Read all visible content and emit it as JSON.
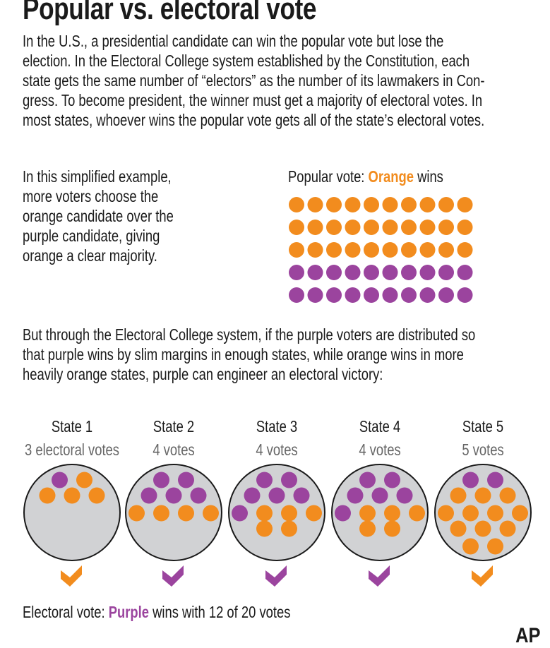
{
  "title": "Popular vs. electoral vote",
  "intro_lines": [
    "In the U.S., a presidential candidate can win the popular vote but lose the",
    "election. In the Electoral College system established by the Constitution, each",
    "state gets the same number of “electors” as the number of its lawmakers in Con-",
    "gress. To become  president, the winner must get a majority of electoral votes. In",
    "most states, whoever wins the popular vote gets all of the state’s electoral votes."
  ],
  "example_lines": [
    "In this simplified example,",
    "more voters choose the",
    "orange candidate over the",
    "purple candidate, giving",
    "orange a clear majority."
  ],
  "popular": {
    "prefix": "Popular vote: ",
    "winner": "Orange",
    "suffix": " wins",
    "rows": [
      [
        "O",
        "O",
        "O",
        "O",
        "O",
        "O",
        "O",
        "O",
        "O",
        "O"
      ],
      [
        "O",
        "O",
        "O",
        "O",
        "O",
        "O",
        "O",
        "O",
        "O",
        "O"
      ],
      [
        "O",
        "O",
        "O",
        "O",
        "O",
        "O",
        "O",
        "O",
        "O",
        "O"
      ],
      [
        "P",
        "P",
        "P",
        "P",
        "P",
        "P",
        "P",
        "P",
        "P",
        "P"
      ],
      [
        "P",
        "P",
        "P",
        "P",
        "P",
        "P",
        "P",
        "P",
        "P",
        "P"
      ]
    ]
  },
  "but_lines": [
    "But through the Electoral College system, if the purple voters are distributed so",
    "that purple wins by slim margins in enough states, while orange wins in more",
    "heavily orange states, purple can engineer an electoral victory:"
  ],
  "states": [
    {
      "name": "State 1",
      "votes": "3 electoral votes",
      "winner": "O",
      "rows": [
        [
          "P",
          "O"
        ],
        [
          "O",
          "O",
          "O"
        ]
      ]
    },
    {
      "name": "State 2",
      "votes": "4 votes",
      "winner": "P",
      "rows": [
        [
          "P",
          "P"
        ],
        [
          "P",
          "P",
          "P"
        ],
        [
          "O",
          "O",
          "O",
          "O"
        ]
      ]
    },
    {
      "name": "State 3",
      "votes": "4 votes",
      "winner": "P",
      "rows": [
        [
          "P",
          "P"
        ],
        [
          "P",
          "P",
          "P"
        ],
        [
          "P",
          "O",
          "O",
          "O"
        ],
        [
          "O",
          "O"
        ]
      ]
    },
    {
      "name": "State 4",
      "votes": "4 votes",
      "winner": "P",
      "rows": [
        [
          "P",
          "P"
        ],
        [
          "P",
          "P",
          "P"
        ],
        [
          "P",
          "O",
          "O",
          "O"
        ],
        [
          "O",
          "O"
        ]
      ]
    },
    {
      "name": "State 5",
      "votes": "5 votes",
      "winner": "O",
      "rows": [
        [
          "P",
          "P"
        ],
        [
          "O",
          "O",
          "O"
        ],
        [
          "O",
          "O",
          "O",
          "O"
        ],
        [
          "O",
          "O",
          "O"
        ],
        [
          "O",
          "O"
        ]
      ]
    }
  ],
  "electoral": {
    "prefix": "Electoral vote: ",
    "winner": "Purple",
    "suffix": " wins with 12 of 20 votes"
  },
  "credit": "AP",
  "colors": {
    "orange": "#F28C1E",
    "purple": "#9B449E",
    "state_fill": "#D1D2D4"
  }
}
